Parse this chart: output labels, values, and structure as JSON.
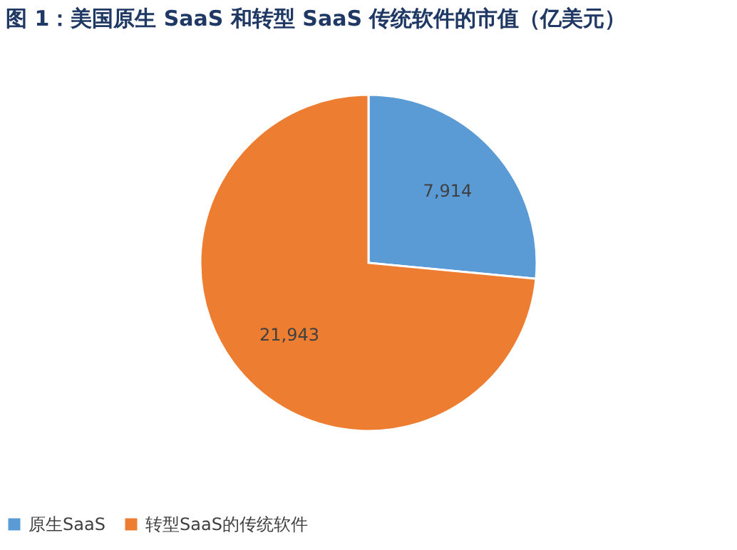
{
  "chart_data": {
    "type": "pie",
    "title": "图 1：美国原生 SaaS 和转型 SaaS 传统软件的市值（亿美元）",
    "categories": [
      "原生SaaS",
      "转型SaaS的传统软件"
    ],
    "values": [
      7914,
      21943
    ],
    "colors": [
      "#5b9bd5",
      "#ed7d31"
    ],
    "value_labels": [
      "7,914",
      "21,943"
    ],
    "legend": "bottom"
  }
}
